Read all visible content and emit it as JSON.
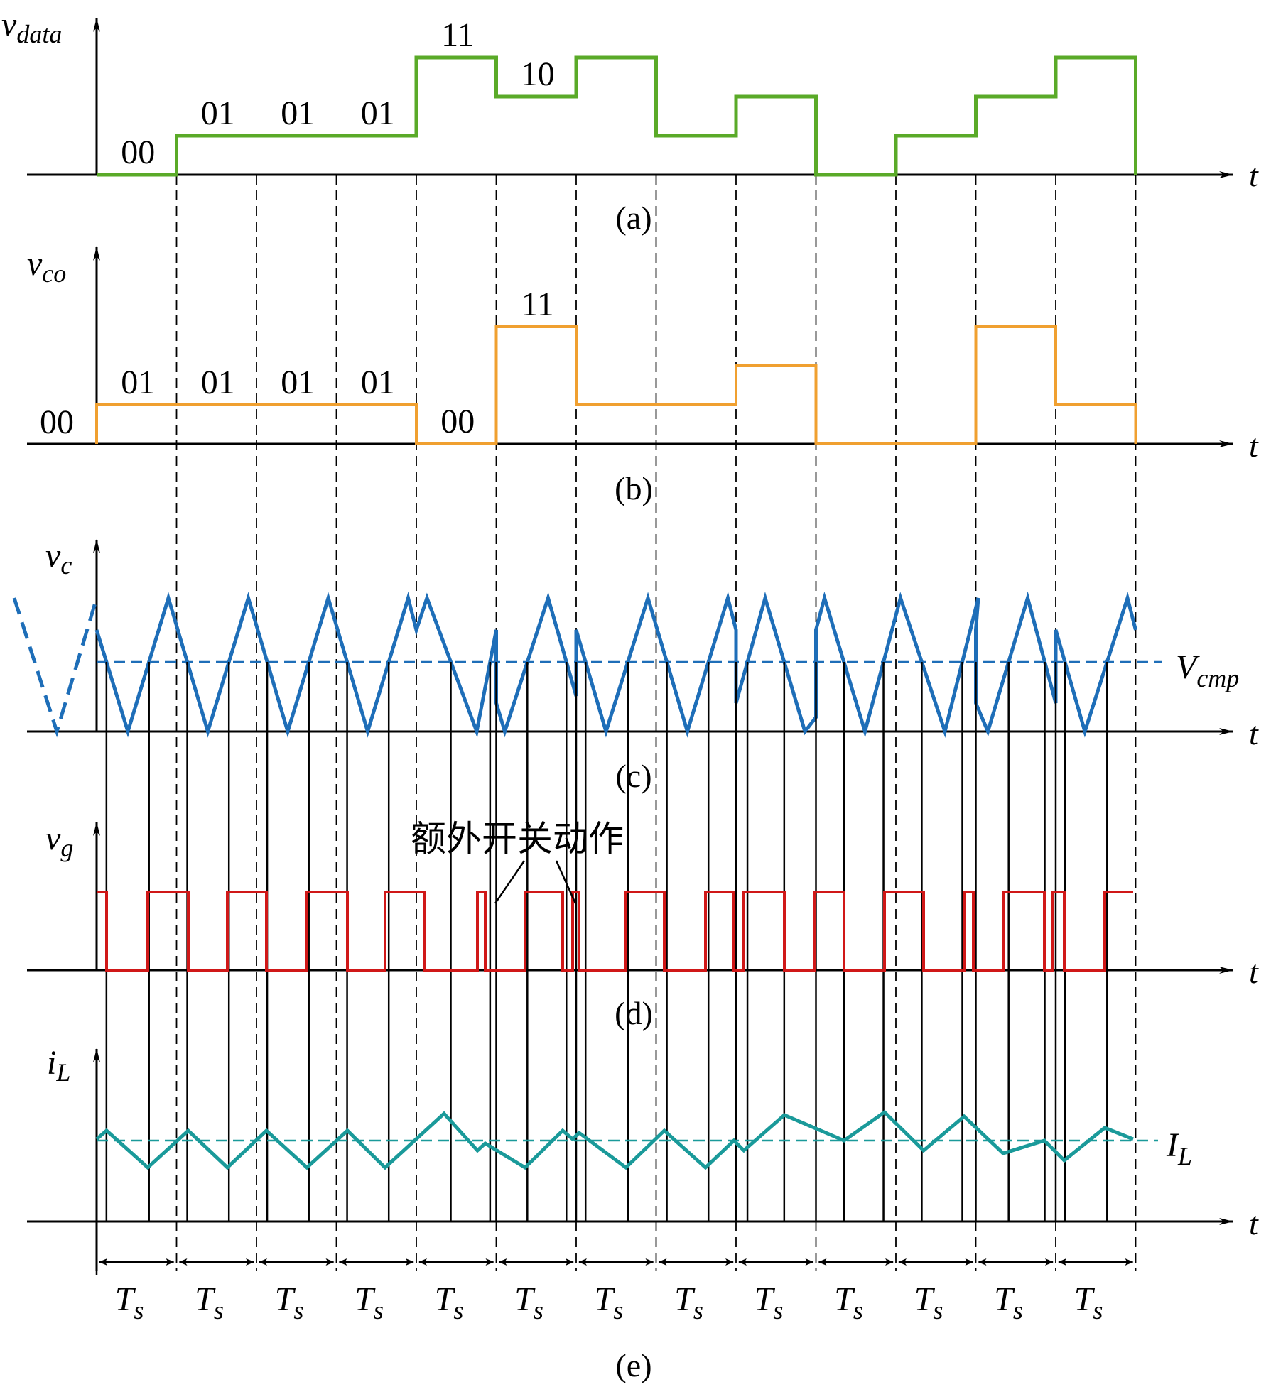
{
  "colors": {
    "vdata": "#5aaa28",
    "vco": "#f0a030",
    "vc": "#1e6eb8",
    "vg": "#d01818",
    "iL": "#1a9a9a",
    "axis": "#000000"
  },
  "t_label": "t",
  "panels": {
    "a": {
      "caption": "(a)",
      "ylabel_main": "v",
      "ylabel_sub": "data",
      "levels": [
        0,
        1,
        1,
        1,
        3,
        2,
        3,
        1,
        2,
        0,
        1,
        2,
        3
      ],
      "codes": [
        "00",
        "01",
        "01",
        "01",
        "11",
        "10"
      ]
    },
    "b": {
      "caption": "(b)",
      "ylabel_main": "v",
      "ylabel_sub": "co",
      "levels": [
        1,
        1,
        1,
        1,
        0,
        3,
        1,
        1,
        2,
        0,
        0,
        3,
        1
      ],
      "initial_code": "00",
      "codes": [
        "01",
        "01",
        "01",
        "01",
        "00",
        "11"
      ]
    },
    "c": {
      "caption": "(c)",
      "ylabel_main": "v",
      "ylabel_sub": "c",
      "ref_main": "V",
      "ref_sub": "cmp"
    },
    "d": {
      "caption": "(d)",
      "ylabel_main": "v",
      "ylabel_sub": "g",
      "annotation": "额外开关动作"
    },
    "e": {
      "caption": "(e)",
      "ylabel_main": "i",
      "ylabel_sub": "L",
      "ref_main": "I",
      "ref_sub": "L",
      "period_main": "T",
      "period_sub": "s",
      "period_count": 13
    }
  }
}
